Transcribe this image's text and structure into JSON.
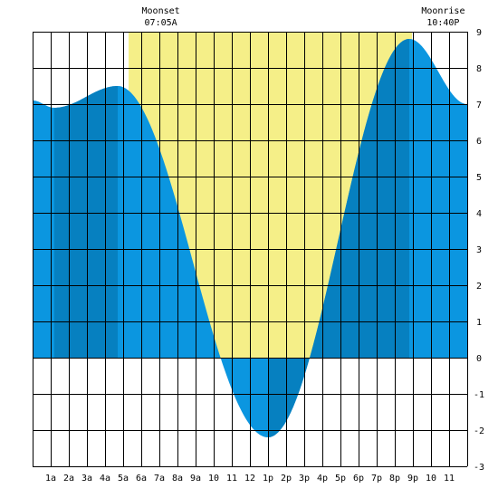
{
  "chart_data": {
    "type": "area",
    "title": "",
    "xlabel": "",
    "ylabel": "",
    "xlim": [
      0,
      24
    ],
    "ylim": [
      -3,
      9
    ],
    "x_ticks": [
      "1a",
      "2a",
      "3a",
      "4a",
      "5a",
      "6a",
      "7a",
      "8a",
      "9a",
      "10",
      "11",
      "12",
      "1p",
      "2p",
      "3p",
      "4p",
      "5p",
      "6p",
      "7p",
      "8p",
      "9p",
      "10",
      "11"
    ],
    "y_ticks": [
      -3,
      -2,
      -1,
      0,
      1,
      2,
      3,
      4,
      5,
      6,
      7,
      8,
      9
    ],
    "daylight_hours": [
      5.3,
      20.95
    ],
    "events": [
      {
        "label": "Moonset",
        "time": "07:05A",
        "hour": 7.08
      },
      {
        "label": "Moonrise",
        "time": "10:40P",
        "hour": 22.67
      }
    ],
    "tide_extremes": [
      {
        "hour": 1.2,
        "height": 6.9
      },
      {
        "hour": 4.7,
        "height": 7.5
      },
      {
        "hour": 13.0,
        "height": -2.2
      },
      {
        "hour": 20.8,
        "height": 8.8
      }
    ],
    "curve_start": {
      "hour": 0.0,
      "height": 7.1
    },
    "curve_end": {
      "hour": 24.0,
      "height": 7.0
    },
    "dark_bands_hours": [
      [
        1.2,
        4.7
      ],
      [
        13.0,
        15.1
      ],
      [
        15.1,
        20.8
      ]
    ],
    "colors": {
      "daylight": "#f5ef88",
      "tide_light": "#0b96e0",
      "tide_dark": "#0680c0",
      "grid": "#000000"
    },
    "grid": true
  }
}
